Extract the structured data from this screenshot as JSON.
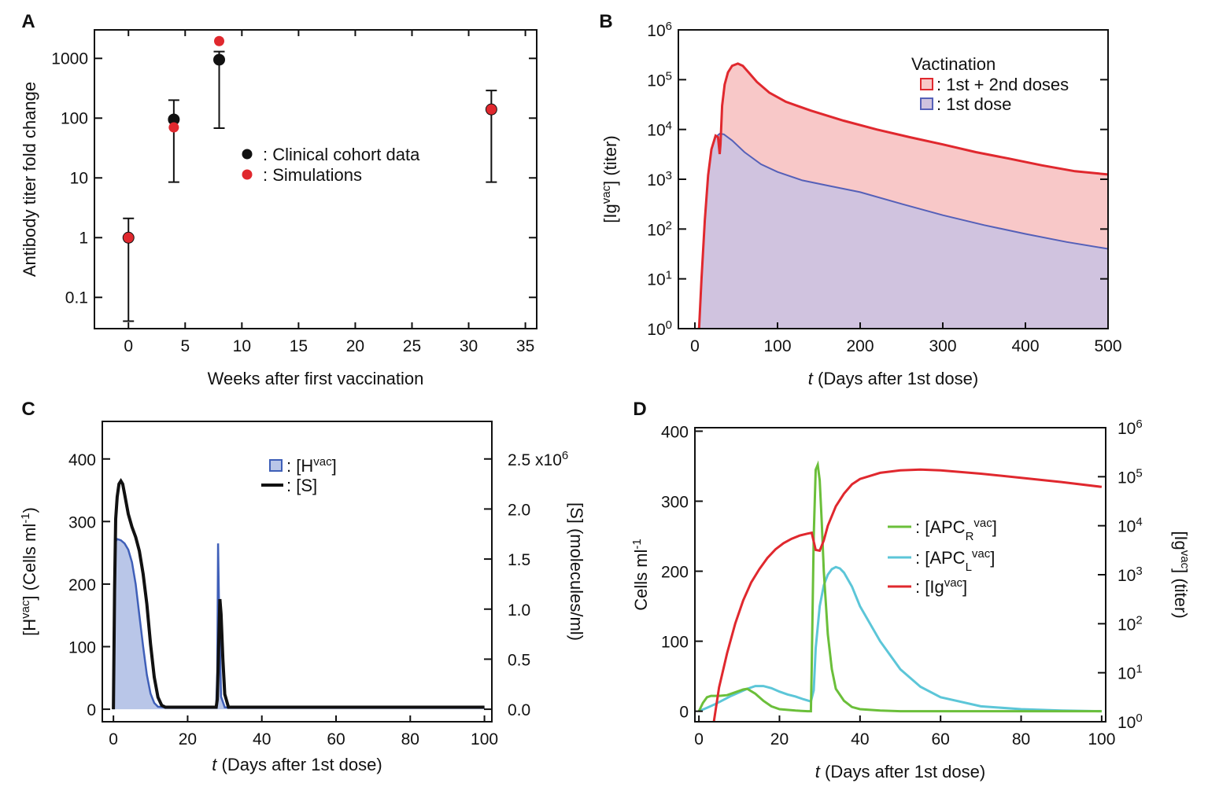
{
  "figure": {
    "panels": [
      {
        "letter": "A"
      },
      {
        "letter": "B"
      },
      {
        "letter": "C"
      },
      {
        "letter": "D"
      }
    ]
  },
  "colors": {
    "red": "#e0282e",
    "black": "#111111",
    "blue": "#3f5fb8",
    "blue_fill": "#b9c6e8",
    "red_fill": "#f8c8c8",
    "purple_fill": "#d0c3df",
    "purple_line": "#5560b8",
    "green": "#6bbf3a",
    "cyan": "#5cc6d8"
  },
  "chart_data": [
    {
      "panel": "A",
      "type": "scatter",
      "xlabel": "Weeks after first vaccination",
      "ylabel": "Antibody titer fold change",
      "xlim": [
        -3,
        36
      ],
      "ylim": [
        0.03,
        3000
      ],
      "yscale": "log",
      "xticks": [
        0,
        5,
        10,
        15,
        20,
        25,
        30,
        35
      ],
      "xtick_labels": [
        "0",
        "5",
        "10",
        "15",
        "20",
        "25",
        "30",
        "35"
      ],
      "yticks": [
        0.1,
        1,
        10,
        100,
        1000
      ],
      "ytick_labels": [
        "0.1",
        "1",
        "10",
        "100",
        "1000"
      ],
      "legend_position": "center",
      "series": [
        {
          "name": ": Clinical cohort data",
          "color": "#111111",
          "x": [
            0,
            4,
            8,
            32
          ],
          "y": [
            1,
            95,
            950,
            140
          ],
          "err_low": [
            0.04,
            8.5,
            68,
            8.5
          ],
          "err_high": [
            2.1,
            200,
            1300,
            290
          ]
        },
        {
          "name": ": Simulations",
          "color": "#e0282e",
          "x": [
            0,
            4,
            8,
            32
          ],
          "y": [
            1,
            70,
            1950,
            140
          ]
        }
      ]
    },
    {
      "panel": "B",
      "type": "area",
      "xlabel_italic": "t",
      "xlabel": "(Days after 1st dose)",
      "ylabel": "[Ig",
      "ylabel_sup": "vac",
      "ylabel_unit": "]  (titer)",
      "xlim": [
        -20,
        500
      ],
      "ylim": [
        1,
        1000000
      ],
      "yscale": "log",
      "xticks": [
        0,
        100,
        200,
        300,
        400,
        500
      ],
      "xtick_labels": [
        "0",
        "100",
        "200",
        "300",
        "400",
        "500"
      ],
      "ytick_base": "10",
      "ytick_exps": [
        "0",
        "1",
        "2",
        "3",
        "4",
        "5",
        "6"
      ],
      "legend_title": "Vactination",
      "legend_position": "top-right",
      "series": [
        {
          "name": ": 1st + 2nd doses",
          "line": "#e0282e",
          "fill": "#f8c8c8",
          "x": [
            5,
            8,
            12,
            16,
            20,
            25,
            28,
            30,
            31,
            33,
            36,
            40,
            45,
            52,
            58,
            65,
            75,
            90,
            110,
            140,
            180,
            220,
            260,
            300,
            340,
            380,
            420,
            460,
            500
          ],
          "y": [
            1,
            10,
            150,
            1200,
            4000,
            7500,
            7000,
            3200,
            5000,
            30000,
            80000,
            140000,
            190000,
            210000,
            190000,
            140000,
            90000,
            55000,
            36000,
            24000,
            15000,
            10000,
            7000,
            5000,
            3500,
            2600,
            1900,
            1450,
            1250
          ]
        },
        {
          "name": ": 1st dose",
          "line": "#5560b8",
          "fill": "#d0c3df",
          "x": [
            5,
            8,
            12,
            16,
            20,
            25,
            30,
            35,
            45,
            60,
            80,
            100,
            130,
            160,
            200,
            250,
            300,
            350,
            400,
            450,
            500
          ],
          "y": [
            1,
            10,
            150,
            1200,
            4000,
            7000,
            8200,
            8000,
            6000,
            3500,
            2000,
            1400,
            950,
            750,
            550,
            320,
            190,
            120,
            80,
            55,
            40
          ]
        }
      ]
    },
    {
      "panel": "C",
      "type": "line",
      "xlabel_italic": "t",
      "xlabel": "(Days after 1st dose)",
      "ylabel_left_pre": "[H",
      "ylabel_left_sup": "vac",
      "ylabel_left_post": "]   (Cells ml",
      "ylabel_left_unit_sup": "-1",
      "ylabel_left_close": ")",
      "ylabel_right": "[S]   (molecules/ml)",
      "xlim": [
        -3,
        102
      ],
      "ylim_left": [
        -20,
        460
      ],
      "ylim_right": [
        -0.125,
        2.875
      ],
      "xticks": [
        0,
        20,
        40,
        60,
        80,
        100
      ],
      "xtick_labels": [
        "0",
        "20",
        "40",
        "60",
        "80",
        "100"
      ],
      "yticks_left": [
        0,
        100,
        200,
        300,
        400
      ],
      "ytick_labels_left": [
        "0",
        "100",
        "200",
        "300",
        "400"
      ],
      "yticks_right": [
        0,
        0.5,
        1,
        1.5,
        2,
        2.5
      ],
      "ytick_labels_right": [
        "0.0",
        "0.5",
        "1.0",
        "1.5",
        "2.0",
        "2.5 x10"
      ],
      "ytick_right_top_exp": "6",
      "legend_position": "top-center",
      "series": [
        {
          "name": ": [H",
          "name_sup": "vac",
          "name_close": "]",
          "axis": "left",
          "line": "#3f5fb8",
          "fill": "#b9c6e8",
          "x": [
            0,
            0.3,
            0.6,
            1,
            2,
            3,
            4,
            5,
            6,
            7,
            8,
            9,
            10,
            11,
            12,
            14,
            20,
            27.7,
            28,
            28.2,
            28.5,
            29,
            30,
            100
          ],
          "y": [
            0,
            150,
            268,
            272,
            270,
            265,
            255,
            235,
            200,
            150,
            100,
            55,
            25,
            10,
            4,
            3,
            3,
            3,
            60,
            265,
            150,
            20,
            3,
            3
          ]
        },
        {
          "name": ": [S]",
          "axis": "right",
          "line": "#111111",
          "x": [
            0,
            0.3,
            0.6,
            1,
            1.5,
            2,
            2.5,
            3,
            4,
            5,
            6,
            7,
            8,
            9,
            10,
            11,
            12,
            13,
            14,
            16,
            27.7,
            28,
            28.3,
            28.7,
            29,
            29.5,
            30,
            31,
            100
          ],
          "y": [
            0,
            1.2,
            1.9,
            2.12,
            2.25,
            2.28,
            2.25,
            2.15,
            1.95,
            1.82,
            1.72,
            1.58,
            1.35,
            1.05,
            0.65,
            0.32,
            0.12,
            0.04,
            0.02,
            0.02,
            0.02,
            0.1,
            0.55,
            1.1,
            0.95,
            0.5,
            0.15,
            0.02,
            0.02
          ]
        }
      ]
    },
    {
      "panel": "D",
      "type": "line",
      "xlabel_italic": "t",
      "xlabel": "(Days after 1st dose)",
      "ylabel_left": "Cells ml",
      "ylabel_left_sup": "-1",
      "ylabel_right_pre": "[Ig",
      "ylabel_right_sup": "vac",
      "ylabel_right_post": "]   (titer)",
      "xlim": [
        -1,
        101
      ],
      "ylim_left": [
        -15,
        405
      ],
      "ylim_right": [
        1,
        1000000
      ],
      "yscale_right": "log",
      "xticks": [
        0,
        20,
        40,
        60,
        80,
        100
      ],
      "xtick_labels": [
        "0",
        "20",
        "40",
        "60",
        "80",
        "100"
      ],
      "yticks_left": [
        0,
        100,
        200,
        300,
        400
      ],
      "ytick_labels_left": [
        "0",
        "100",
        "200",
        "300",
        "400"
      ],
      "ytick_base": "10",
      "ytick_exps_right": [
        "0",
        "1",
        "2",
        "3",
        "4",
        "5",
        "6"
      ],
      "legend_position": "center-right",
      "series": [
        {
          "name": ": [APC",
          "name_sub": "R",
          "name_sup": "vac",
          "name_close": "]",
          "axis": "left",
          "line": "#6bbf3a",
          "x": [
            0,
            1,
            2,
            3,
            5,
            7,
            9,
            11,
            12,
            14,
            16,
            18,
            20,
            24,
            27,
            27.8,
            28,
            28.5,
            29,
            29.5,
            30,
            30.5,
            31,
            32,
            33,
            34,
            36,
            38,
            40,
            45,
            50,
            60,
            100
          ],
          "y": [
            0,
            12,
            20,
            22,
            22,
            23,
            27,
            31,
            32,
            25,
            15,
            7,
            3,
            1,
            0,
            0,
            60,
            250,
            345,
            352,
            330,
            270,
            200,
            110,
            60,
            32,
            15,
            6,
            3,
            1,
            0,
            0,
            0
          ]
        },
        {
          "name": ": [APC",
          "name_sub": "L",
          "name_sup": "vac",
          "name_close": "]",
          "axis": "left",
          "line": "#5cc6d8",
          "x": [
            0,
            2,
            4,
            6,
            8,
            10,
            12,
            14,
            16,
            18,
            20,
            22,
            24,
            26,
            27.8,
            28.5,
            29,
            30,
            31,
            32,
            33,
            34,
            35,
            36,
            38,
            40,
            45,
            50,
            55,
            60,
            70,
            80,
            90,
            100
          ],
          "y": [
            0,
            5,
            10,
            16,
            22,
            27,
            32,
            36,
            36,
            33,
            28,
            24,
            21,
            17,
            14,
            30,
            90,
            150,
            180,
            195,
            203,
            206,
            204,
            198,
            178,
            150,
            100,
            60,
            35,
            20,
            7,
            3,
            1,
            0
          ]
        },
        {
          "name": ": [Ig",
          "name_sup": "vac",
          "name_close": "]",
          "axis": "right",
          "line": "#e0282e",
          "x": [
            3.7,
            5,
            7,
            9,
            11,
            13,
            15,
            17,
            19,
            21,
            23,
            25,
            27,
            28,
            29,
            30,
            31,
            32,
            34,
            36,
            38,
            40,
            45,
            50,
            55,
            60,
            70,
            80,
            90,
            100
          ],
          "y": [
            1,
            5,
            25,
            100,
            300,
            700,
            1300,
            2200,
            3300,
            4400,
            5400,
            6300,
            6900,
            7200,
            3200,
            3100,
            5000,
            10000,
            25000,
            45000,
            70000,
            90000,
            120000,
            135000,
            140000,
            135000,
            115000,
            95000,
            78000,
            62000
          ]
        }
      ]
    }
  ]
}
